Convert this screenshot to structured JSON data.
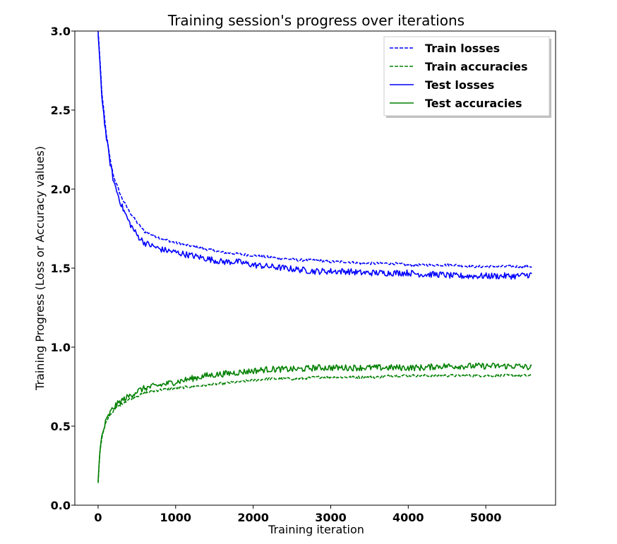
{
  "chart_data": {
    "type": "line",
    "title": "Training session's progress over iterations",
    "xlabel": "Training iteration",
    "ylabel": "Training Progress (Loss or Accuracy values)",
    "xlim": [
      -300,
      5900
    ],
    "ylim": [
      0.0,
      3.0
    ],
    "xticks": [
      0,
      1000,
      2000,
      3000,
      4000,
      5000
    ],
    "xtick_labels": [
      "0",
      "1000",
      "2000",
      "3000",
      "4000",
      "5000"
    ],
    "yticks": [
      0.0,
      0.5,
      1.0,
      1.5,
      2.0,
      2.5,
      3.0
    ],
    "ytick_labels": [
      "0.0",
      "0.5",
      "1.0",
      "1.5",
      "2.0",
      "2.5",
      "3.0"
    ],
    "grid": false,
    "legend_position": "top-right",
    "series": [
      {
        "name": "Train losses",
        "color": "#0000ff",
        "style": "dashed",
        "x": [
          0,
          20,
          50,
          100,
          150,
          200,
          300,
          400,
          500,
          600,
          800,
          1000,
          1200,
          1400,
          1600,
          1800,
          2000,
          2200,
          2400,
          2600,
          2800,
          3000,
          3200,
          3400,
          3600,
          3800,
          4000,
          4200,
          4400,
          4600,
          4800,
          5000,
          5200,
          5400,
          5600
        ],
        "y": [
          3.0,
          2.85,
          2.6,
          2.37,
          2.2,
          2.08,
          1.95,
          1.86,
          1.79,
          1.73,
          1.69,
          1.66,
          1.64,
          1.62,
          1.6,
          1.59,
          1.58,
          1.57,
          1.56,
          1.55,
          1.55,
          1.54,
          1.54,
          1.53,
          1.53,
          1.53,
          1.52,
          1.52,
          1.52,
          1.52,
          1.51,
          1.51,
          1.51,
          1.51,
          1.51
        ]
      },
      {
        "name": "Train accuracies",
        "color": "#008000",
        "style": "dashed",
        "x": [
          0,
          20,
          50,
          100,
          150,
          200,
          300,
          400,
          500,
          600,
          800,
          1000,
          1200,
          1400,
          1600,
          1800,
          2000,
          2200,
          2400,
          2600,
          2800,
          3000,
          3200,
          3400,
          3600,
          3800,
          4000,
          4200,
          4400,
          4600,
          4800,
          5000,
          5200,
          5400,
          5600
        ],
        "y": [
          0.14,
          0.32,
          0.43,
          0.52,
          0.57,
          0.6,
          0.64,
          0.67,
          0.69,
          0.71,
          0.73,
          0.74,
          0.75,
          0.76,
          0.77,
          0.78,
          0.79,
          0.8,
          0.8,
          0.8,
          0.81,
          0.81,
          0.81,
          0.81,
          0.81,
          0.82,
          0.82,
          0.82,
          0.82,
          0.82,
          0.82,
          0.82,
          0.82,
          0.82,
          0.82
        ]
      },
      {
        "name": "Test losses",
        "color": "#0000ff",
        "style": "solid",
        "x": [
          0,
          20,
          50,
          100,
          150,
          200,
          300,
          400,
          500,
          600,
          800,
          1000,
          1200,
          1400,
          1600,
          1800,
          2000,
          2200,
          2400,
          2600,
          2800,
          3000,
          3200,
          3400,
          3600,
          3800,
          4000,
          4200,
          4400,
          4600,
          4800,
          5000,
          5200,
          5400,
          5600
        ],
        "y": [
          2.98,
          2.83,
          2.58,
          2.35,
          2.18,
          2.05,
          1.9,
          1.79,
          1.71,
          1.66,
          1.62,
          1.6,
          1.58,
          1.56,
          1.54,
          1.54,
          1.52,
          1.51,
          1.5,
          1.49,
          1.48,
          1.48,
          1.48,
          1.47,
          1.47,
          1.47,
          1.47,
          1.46,
          1.46,
          1.45,
          1.45,
          1.45,
          1.45,
          1.45,
          1.46
        ]
      },
      {
        "name": "Test accuracies",
        "color": "#008000",
        "style": "solid",
        "x": [
          0,
          20,
          50,
          100,
          150,
          200,
          300,
          400,
          500,
          600,
          800,
          1000,
          1200,
          1400,
          1600,
          1800,
          2000,
          2200,
          2400,
          2600,
          2800,
          3000,
          3200,
          3400,
          3600,
          3800,
          4000,
          4200,
          4400,
          4600,
          4800,
          5000,
          5200,
          5400,
          5600
        ],
        "y": [
          0.15,
          0.33,
          0.44,
          0.53,
          0.58,
          0.62,
          0.66,
          0.69,
          0.72,
          0.74,
          0.76,
          0.78,
          0.8,
          0.82,
          0.83,
          0.84,
          0.85,
          0.86,
          0.86,
          0.86,
          0.87,
          0.87,
          0.87,
          0.87,
          0.87,
          0.87,
          0.87,
          0.87,
          0.88,
          0.88,
          0.88,
          0.88,
          0.88,
          0.88,
          0.87
        ]
      }
    ]
  }
}
